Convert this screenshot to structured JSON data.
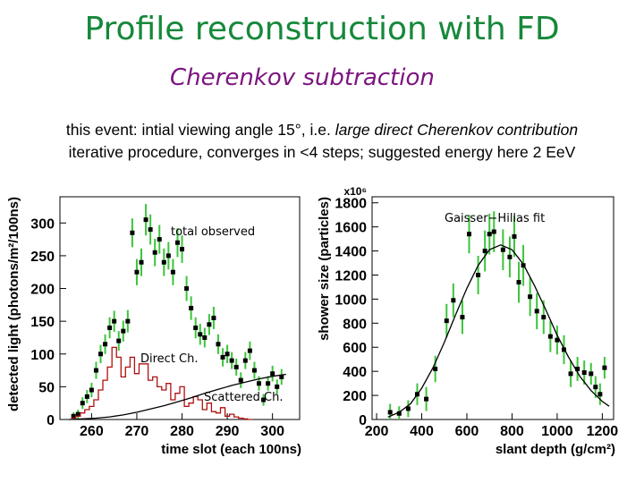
{
  "slide": {
    "title": "Profile reconstruction with FD",
    "subtitle": "Cherenkov subtraction",
    "line1_prefix": "this event: intial viewing angle 15°, i.e. ",
    "line1_italic": "large direct Cherenkov contribution",
    "line2": "iterative procedure, converges in <4 steps; suggested energy here 2 EeV"
  },
  "colors": {
    "title": "#16883a",
    "subtitle": "#7b1580",
    "errorbar": "#3cc43c",
    "marker": "#000000",
    "direct": "#b01010",
    "scattered": "#000000",
    "fit": "#000000"
  },
  "chart_data": [
    {
      "type": "scatter",
      "xlabel": "time slot (each 100ns)",
      "ylabel": "detected light (photons/m²/100ns)",
      "xlim": [
        253,
        306
      ],
      "ylim": [
        0,
        340
      ],
      "xticks": [
        260,
        270,
        280,
        290,
        300
      ],
      "yticks": [
        0,
        50,
        100,
        150,
        200,
        250,
        300
      ],
      "annotations": [
        "total observed",
        "Direct Ch.",
        "Scattered Ch."
      ],
      "series": [
        {
          "name": "total observed",
          "style": "markers-with-errorbars",
          "points": [
            [
              256,
              5,
              6
            ],
            [
              257,
              8,
              7
            ],
            [
              258,
              25,
              9
            ],
            [
              259,
              35,
              10
            ],
            [
              260,
              45,
              11
            ],
            [
              261,
              75,
              13
            ],
            [
              262,
              100,
              14
            ],
            [
              263,
              115,
              15
            ],
            [
              264,
              140,
              16
            ],
            [
              265,
              150,
              16
            ],
            [
              266,
              120,
              15
            ],
            [
              267,
              135,
              16
            ],
            [
              268,
              150,
              17
            ],
            [
              269,
              285,
              22
            ],
            [
              270,
              225,
              20
            ],
            [
              271,
              240,
              21
            ],
            [
              272,
              305,
              24
            ],
            [
              273,
              290,
              23
            ],
            [
              274,
              255,
              21
            ],
            [
              275,
              275,
              22
            ],
            [
              276,
              240,
              21
            ],
            [
              277,
              250,
              21
            ],
            [
              278,
              225,
              20
            ],
            [
              279,
              270,
              22
            ],
            [
              280,
              260,
              21
            ],
            [
              281,
              200,
              19
            ],
            [
              282,
              170,
              18
            ],
            [
              283,
              140,
              16
            ],
            [
              284,
              130,
              16
            ],
            [
              285,
              125,
              15
            ],
            [
              286,
              145,
              16
            ],
            [
              287,
              155,
              17
            ],
            [
              288,
              115,
              15
            ],
            [
              289,
              95,
              14
            ],
            [
              290,
              100,
              14
            ],
            [
              291,
              90,
              13
            ],
            [
              292,
              80,
              13
            ],
            [
              293,
              60,
              12
            ],
            [
              294,
              90,
              13
            ],
            [
              295,
              105,
              14
            ],
            [
              296,
              75,
              13
            ],
            [
              297,
              55,
              11
            ],
            [
              298,
              30,
              9
            ],
            [
              299,
              55,
              11
            ],
            [
              300,
              70,
              12
            ],
            [
              301,
              50,
              11
            ],
            [
              302,
              65,
              12
            ]
          ]
        },
        {
          "name": "Direct Ch.",
          "style": "line",
          "x": [
            256,
            257,
            258,
            259,
            260,
            261,
            262,
            263,
            264,
            265,
            266,
            267,
            268,
            269,
            270,
            271,
            272,
            273,
            274,
            275,
            276,
            277,
            278,
            279,
            280,
            281,
            282,
            283,
            284,
            285,
            286,
            287,
            288,
            289,
            290,
            291,
            292,
            293,
            294,
            295
          ],
          "y": [
            2,
            5,
            10,
            15,
            20,
            30,
            45,
            60,
            80,
            110,
            95,
            65,
            80,
            95,
            70,
            85,
            85,
            60,
            65,
            50,
            45,
            55,
            30,
            40,
            50,
            20,
            25,
            35,
            30,
            15,
            25,
            12,
            10,
            18,
            5,
            8,
            4,
            2,
            1,
            0
          ]
        },
        {
          "name": "Scattered Ch.",
          "style": "line",
          "x": [
            255,
            258,
            261,
            264,
            267,
            270,
            273,
            276,
            279,
            282,
            285,
            288,
            291,
            294,
            297,
            300,
            303
          ],
          "y": [
            0,
            1,
            2,
            4,
            7,
            11,
            16,
            21,
            27,
            33,
            40,
            46,
            52,
            57,
            62,
            66,
            69
          ]
        }
      ]
    },
    {
      "type": "scatter",
      "xlabel": "slant depth (g/cm²)",
      "ylabel": "shower size (particles)",
      "y_multiplier": "x10⁶",
      "xlim": [
        180,
        1250
      ],
      "ylim": [
        0,
        1850
      ],
      "xticks": [
        200,
        400,
        600,
        800,
        1000,
        1200
      ],
      "yticks": [
        0,
        200,
        400,
        600,
        800,
        1000,
        1200,
        1400,
        1600,
        1800
      ],
      "annotations": [
        "Gaisser−Hillas fit"
      ],
      "series": [
        {
          "name": "data",
          "style": "markers-with-errorbars",
          "points": [
            [
              260,
              60,
              70
            ],
            [
              300,
              50,
              60
            ],
            [
              340,
              90,
              70
            ],
            [
              380,
              210,
              90
            ],
            [
              420,
              170,
              100
            ],
            [
              460,
              420,
              110
            ],
            [
              510,
              820,
              140
            ],
            [
              540,
              990,
              140
            ],
            [
              580,
              850,
              140
            ],
            [
              610,
              1540,
              160
            ],
            [
              650,
              1200,
              160
            ],
            [
              680,
              1400,
              170
            ],
            [
              700,
              1540,
              170
            ],
            [
              720,
              1560,
              170
            ],
            [
              760,
              1410,
              170
            ],
            [
              790,
              1350,
              170
            ],
            [
              810,
              1520,
              170
            ],
            [
              830,
              1140,
              170
            ],
            [
              850,
              1280,
              170
            ],
            [
              880,
              1020,
              160
            ],
            [
              910,
              900,
              150
            ],
            [
              940,
              850,
              140
            ],
            [
              970,
              690,
              130
            ],
            [
              1000,
              660,
              120
            ],
            [
              1030,
              580,
              120
            ],
            [
              1060,
              380,
              110
            ],
            [
              1090,
              420,
              100
            ],
            [
              1120,
              390,
              100
            ],
            [
              1150,
              380,
              90
            ],
            [
              1170,
              270,
              90
            ],
            [
              1190,
              210,
              90
            ],
            [
              1210,
              430,
              90
            ]
          ]
        },
        {
          "name": "Gaisser−Hillas fit",
          "style": "line",
          "x": [
            250,
            300,
            350,
            400,
            450,
            500,
            550,
            600,
            650,
            700,
            750,
            800,
            850,
            900,
            950,
            1000,
            1050,
            1100,
            1150,
            1200,
            1230
          ],
          "y": [
            20,
            60,
            130,
            260,
            430,
            640,
            870,
            1090,
            1280,
            1410,
            1450,
            1410,
            1290,
            1110,
            910,
            700,
            520,
            360,
            240,
            150,
            110
          ]
        }
      ]
    }
  ]
}
